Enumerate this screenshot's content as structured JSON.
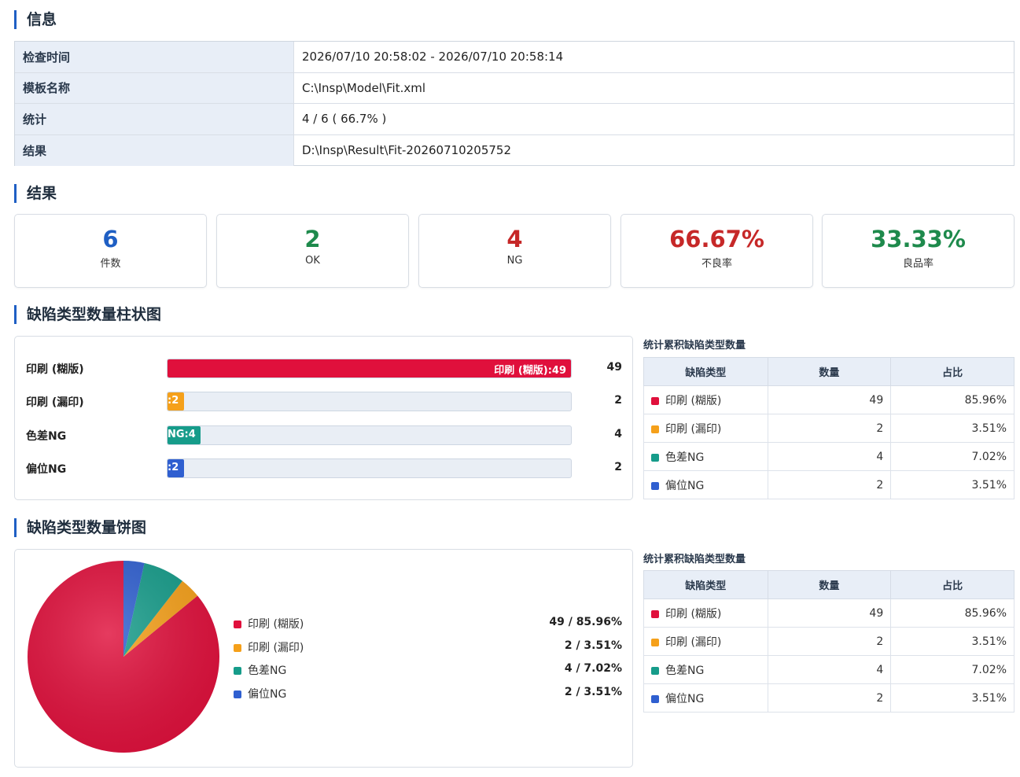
{
  "sections": {
    "info": "信息",
    "result": "结果",
    "bar_chart": "缺陷类型数量柱状图",
    "pie_chart": "缺陷类型数量饼图"
  },
  "info": [
    {
      "key": "检查时间",
      "value": "2026/07/10 20:58:02 - 2026/07/10 20:58:14"
    },
    {
      "key": "模板名称",
      "value": "C:\\Insp\\Model\\Fit.xml"
    },
    {
      "key": "统计",
      "value": "4 / 6 ( 66.7% )"
    },
    {
      "key": "结果",
      "value": "D:\\Insp\\Result\\Fit-20260710205752"
    }
  ],
  "stats": [
    {
      "value": "6",
      "label": "件数",
      "color": "#1f5fc4"
    },
    {
      "value": "2",
      "label": "OK",
      "color": "#1e8a4c"
    },
    {
      "value": "4",
      "label": "NG",
      "color": "#c62828"
    },
    {
      "value": "66.67%",
      "label": "不良率",
      "color": "#c62828"
    },
    {
      "value": "33.33%",
      "label": "良品率",
      "color": "#1e8a4c"
    }
  ],
  "table": {
    "caption": "统计累积缺陷类型数量",
    "headers": [
      "缺陷类型",
      "数量",
      "占比"
    ]
  },
  "chart_data": {
    "type": "bar",
    "categories": [
      "印刷 (糊版)",
      "印刷 (漏印)",
      "色差NG",
      "偏位NG"
    ],
    "values": [
      49,
      2,
      4,
      2
    ],
    "shares": [
      "85.96%",
      "3.51%",
      "7.02%",
      "3.51%"
    ],
    "bar_labels": [
      "印刷 (糊版):49",
      ":2",
      "NG:4",
      ":2"
    ],
    "legend_values": [
      "49 / 85.96%",
      "2 / 3.51%",
      "4 / 7.02%",
      "2 / 3.51%"
    ],
    "colors": [
      "#e0103c",
      "#f5a01a",
      "#169c8a",
      "#2f5fd0"
    ],
    "xlim": [
      0,
      49
    ]
  }
}
